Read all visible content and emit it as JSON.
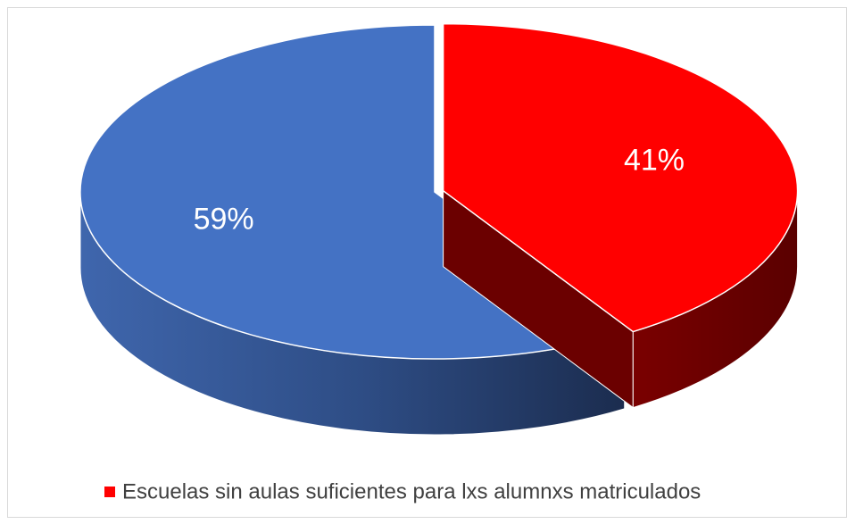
{
  "chart_data": {
    "type": "pie3d",
    "categories": [
      "Escuelas sin aulas suficientes para lxs alumnxs matriculados",
      null
    ],
    "values": [
      41,
      59
    ],
    "value_labels": [
      "41%",
      "59%"
    ],
    "colors": [
      "#ff0000",
      "#4472c4"
    ],
    "legend": "bottom"
  }
}
